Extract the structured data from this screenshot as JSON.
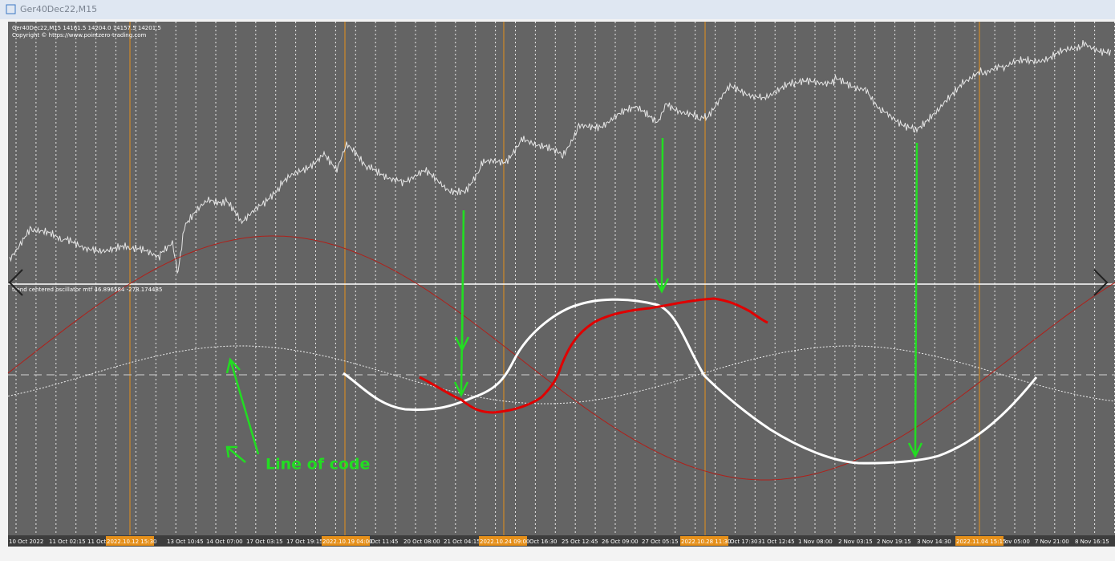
{
  "window": {
    "title": "Ger40Dec22,M15"
  },
  "price_pane": {
    "header": "Ger40Dec22,M15  14161.5 14204.0 14157.5 14201.5",
    "copyright": "Copyright © https://www.pointzero-trading.com"
  },
  "oscillator_pane": {
    "label": "trend centered oscillator mtf 46.896584 -278.174485"
  },
  "annotation": {
    "text": "Line of code"
  },
  "time_axis": {
    "labels": [
      "10 Oct 2022",
      "11 Oct 02:15",
      "11 Oct",
      "2022.10.12 15:30",
      "13 Oct 10:45",
      "14 Oct 07:00",
      "17 Oct 03:15",
      "17 Oct 19:15",
      "2022.10.19 04:00",
      "Oct 11:45",
      "20 Oct 08:00",
      "21 Oct 04:15",
      "2022.10.24 09:00",
      "Oct 16:30",
      "25 Oct 12:45",
      "26 Oct 09:00",
      "27 Oct 05:15",
      "2022.10.28 11:30",
      "Oct 17:30",
      "31 Oct 12:45",
      "1 Nov 08:00",
      "2 Nov 03:15",
      "2 Nov 19:15",
      "3 Nov 14:30",
      "2022.11.04 15:15",
      "ov 05:00",
      "7 Nov 21:00",
      "8 Nov 16:15"
    ]
  }
}
